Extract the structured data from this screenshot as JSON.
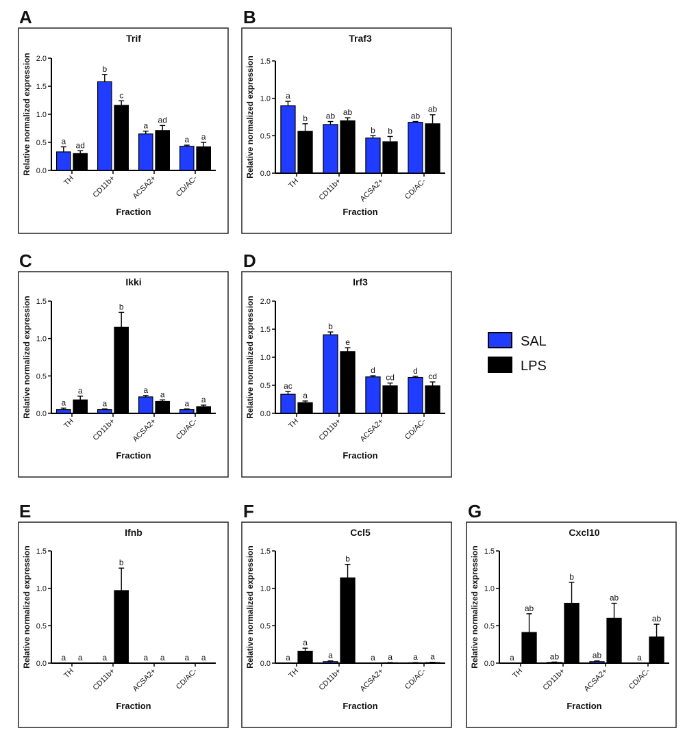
{
  "legend": {
    "items": [
      {
        "label": "SAL",
        "color": "#1f3cff"
      },
      {
        "label": "LPS",
        "color": "#000000"
      }
    ]
  },
  "colors": {
    "sal": "#1f3cff",
    "lps": "#000000",
    "frame": "#222222"
  },
  "chart_data": [
    {
      "panel": "A",
      "type": "bar",
      "title": "Trif",
      "xlabel": "Fraction",
      "ylabel": "Relative normalized expression",
      "ylim": [
        0,
        2.0
      ],
      "yticks": [
        "0.0",
        "0.5",
        "1.0",
        "1.5",
        "2.0"
      ],
      "categories": [
        "TH",
        "CD11b+",
        "ACSA2+",
        "CD/AC-"
      ],
      "series": [
        {
          "name": "SAL",
          "values": [
            0.33,
            1.58,
            0.65,
            0.43
          ],
          "errors": [
            0.09,
            0.13,
            0.05,
            0.02
          ],
          "letters": [
            "a",
            "b",
            "a",
            "a"
          ]
        },
        {
          "name": "LPS",
          "values": [
            0.3,
            1.16,
            0.71,
            0.42
          ],
          "errors": [
            0.05,
            0.08,
            0.09,
            0.08
          ],
          "letters": [
            "ad",
            "c",
            "ad",
            "a"
          ]
        }
      ]
    },
    {
      "panel": "B",
      "type": "bar",
      "title": "Traf3",
      "xlabel": "Fraction",
      "ylabel": "Relative normalized expression",
      "ylim": [
        0,
        1.5
      ],
      "yticks": [
        "0.0",
        "0.5",
        "1.0",
        "1.5"
      ],
      "categories": [
        "TH",
        "CD11b+",
        "ACSA2+",
        "CD/AC-"
      ],
      "series": [
        {
          "name": "SAL",
          "values": [
            0.9,
            0.65,
            0.47,
            0.68
          ],
          "errors": [
            0.06,
            0.04,
            0.03,
            0.01
          ],
          "letters": [
            "a",
            "ab",
            "b",
            "ab"
          ]
        },
        {
          "name": "LPS",
          "values": [
            0.56,
            0.7,
            0.42,
            0.66
          ],
          "errors": [
            0.1,
            0.04,
            0.07,
            0.12
          ],
          "letters": [
            "b",
            "ab",
            "b",
            "ab"
          ]
        }
      ]
    },
    {
      "panel": "C",
      "type": "bar",
      "title": "Ikki",
      "xlabel": "Fraction",
      "ylabel": "Relative normalized expression",
      "ylim": [
        0,
        1.5
      ],
      "yticks": [
        "0.0",
        "0.5",
        "1.0",
        "1.5"
      ],
      "categories": [
        "TH",
        "CD11b+",
        "ACSA2+",
        "CD/AC-"
      ],
      "series": [
        {
          "name": "SAL",
          "values": [
            0.05,
            0.05,
            0.22,
            0.05
          ],
          "errors": [
            0.02,
            0.01,
            0.02,
            0.01
          ],
          "letters": [
            "a",
            "a",
            "a",
            "a"
          ]
        },
        {
          "name": "LPS",
          "values": [
            0.18,
            1.15,
            0.16,
            0.09
          ],
          "errors": [
            0.05,
            0.2,
            0.02,
            0.02
          ],
          "letters": [
            "a",
            "b",
            "a",
            "a"
          ]
        }
      ]
    },
    {
      "panel": "D",
      "type": "bar",
      "title": "Irf3",
      "xlabel": "Fraction",
      "ylabel": "Relative normalized expression",
      "ylim": [
        0,
        2.0
      ],
      "yticks": [
        "0.0",
        "0.5",
        "1.0",
        "1.5",
        "2.0"
      ],
      "categories": [
        "TH",
        "CD11b+",
        "ACSA2+",
        "CD/AC-"
      ],
      "series": [
        {
          "name": "SAL",
          "values": [
            0.34,
            1.4,
            0.65,
            0.64
          ],
          "errors": [
            0.05,
            0.05,
            0.02,
            0.02
          ],
          "letters": [
            "ac",
            "b",
            "d",
            "d"
          ]
        },
        {
          "name": "LPS",
          "values": [
            0.19,
            1.1,
            0.49,
            0.49
          ],
          "errors": [
            0.03,
            0.07,
            0.05,
            0.07
          ],
          "letters": [
            "a",
            "e",
            "cd",
            "cd"
          ]
        }
      ]
    },
    {
      "panel": "E",
      "type": "bar",
      "title": "Ifnb",
      "xlabel": "Fraction",
      "ylabel": "Relative normalized expression",
      "ylim": [
        0,
        1.5
      ],
      "yticks": [
        "0.0",
        "0.5",
        "1.0",
        "1.5"
      ],
      "categories": [
        "TH",
        "CD11b+",
        "ACSA2+",
        "CD/AC-"
      ],
      "series": [
        {
          "name": "SAL",
          "values": [
            0.0,
            0.0,
            0.0,
            0.0
          ],
          "errors": [
            0,
            0,
            0,
            0
          ],
          "letters": [
            "a",
            "a",
            "a",
            "a"
          ]
        },
        {
          "name": "LPS",
          "values": [
            0.0,
            0.97,
            0.0,
            0.0
          ],
          "errors": [
            0,
            0.3,
            0,
            0
          ],
          "letters": [
            "a",
            "b",
            "a",
            "a"
          ]
        }
      ]
    },
    {
      "panel": "F",
      "type": "bar",
      "title": "Ccl5",
      "xlabel": "Fraction",
      "ylabel": "Relative normalized expression",
      "ylim": [
        0,
        1.5
      ],
      "yticks": [
        "0.0",
        "0.5",
        "1.0",
        "1.5"
      ],
      "categories": [
        "TH",
        "CD11b+",
        "ACSA2+",
        "CD/AC-"
      ],
      "series": [
        {
          "name": "SAL",
          "values": [
            0.0,
            0.02,
            0.0,
            0.005
          ],
          "errors": [
            0,
            0.01,
            0,
            0.003
          ],
          "letters": [
            "a",
            "a",
            "a",
            "a"
          ]
        },
        {
          "name": "LPS",
          "values": [
            0.16,
            1.14,
            0.005,
            0.008
          ],
          "errors": [
            0.04,
            0.18,
            0.003,
            0.004
          ],
          "letters": [
            "a",
            "b",
            "a",
            "a"
          ]
        }
      ]
    },
    {
      "panel": "G",
      "type": "bar",
      "title": "Cxcl10",
      "xlabel": "Fraction",
      "ylabel": "Relative normalized expression",
      "ylim": [
        0,
        1.5
      ],
      "yticks": [
        "0.0",
        "0.5",
        "1.0",
        "1.5"
      ],
      "categories": [
        "TH",
        "CD11b+",
        "ACSA2+",
        "CD/AC-"
      ],
      "series": [
        {
          "name": "SAL",
          "values": [
            0.0,
            0.01,
            0.02,
            0.0
          ],
          "errors": [
            0,
            0.005,
            0.01,
            0
          ],
          "letters": [
            "a",
            "ab",
            "ab",
            "a"
          ]
        },
        {
          "name": "LPS",
          "values": [
            0.41,
            0.8,
            0.6,
            0.35
          ],
          "errors": [
            0.25,
            0.28,
            0.2,
            0.17
          ],
          "letters": [
            "ab",
            "b",
            "ab",
            "ab"
          ]
        }
      ]
    }
  ]
}
